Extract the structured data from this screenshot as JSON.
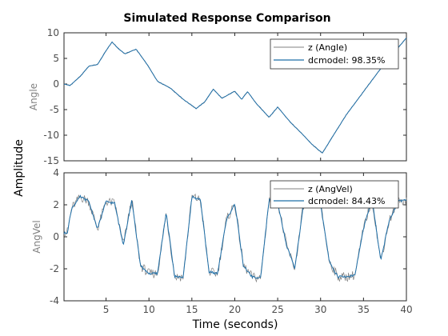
{
  "chart_data": {
    "type": "line",
    "title": "Simulated Response Comparison",
    "xlabel": "Time (seconds)",
    "ylabel": "Amplitude",
    "xlim": [
      0.1,
      40
    ],
    "x_ticks": [
      5,
      10,
      15,
      20,
      25,
      30,
      35,
      40
    ],
    "grid": false,
    "legend_placement": "top-right",
    "colors": {
      "measured": "#808080",
      "model": "#1f6fa8",
      "axes": "#262626",
      "text": "#4d4d4d"
    },
    "panels": [
      {
        "ylabel": "Angle",
        "ylim": [
          -15,
          10
        ],
        "y_ticks": [
          -15,
          -10,
          -5,
          0,
          5,
          10
        ],
        "series": [
          {
            "name": "z (Angle)",
            "role": "measured"
          },
          {
            "name": "dcmodel: 98.35%",
            "role": "model"
          }
        ],
        "x": [
          0.1,
          0.8,
          2,
          3,
          4,
          5,
          5.7,
          6.5,
          7.2,
          8.5,
          9.8,
          11,
          12.5,
          14,
          15.5,
          16.5,
          17.5,
          18.5,
          20,
          20.8,
          21.5,
          22.5,
          24,
          25,
          26.5,
          28,
          29,
          30.2,
          31.5,
          33,
          35,
          37,
          39,
          40
        ],
        "y": [
          0,
          -0.3,
          1.5,
          3.5,
          3.8,
          6.5,
          8.2,
          6.8,
          5.9,
          6.8,
          3.8,
          0.5,
          -0.8,
          -3.0,
          -4.8,
          -3.5,
          -1.0,
          -2.8,
          -1.4,
          -3.0,
          -1.5,
          -3.8,
          -6.5,
          -4.5,
          -7.5,
          -10.0,
          -11.8,
          -13.5,
          -10.0,
          -6.0,
          -1.5,
          3.0,
          7.0,
          9.0
        ]
      },
      {
        "ylabel": "AngVel",
        "ylim": [
          -4,
          4
        ],
        "y_ticks": [
          -4,
          -2,
          0,
          2,
          4
        ],
        "series": [
          {
            "name": "z (AngVel)",
            "role": "measured"
          },
          {
            "name": "dcmodel: 84.43%",
            "role": "model"
          }
        ],
        "x": [
          0.1,
          0.5,
          1,
          2,
          3,
          4,
          5,
          6,
          7,
          8,
          9,
          10,
          11,
          12,
          13,
          14,
          15,
          16,
          17,
          18,
          19,
          20,
          21,
          22,
          23,
          24,
          25,
          26,
          27,
          28,
          29,
          30,
          31,
          32,
          33,
          34,
          35,
          36,
          37,
          38,
          39,
          40
        ],
        "y": [
          0.2,
          0.3,
          1.8,
          2.5,
          2.2,
          0.5,
          2.2,
          2.1,
          -0.5,
          2.3,
          -1.8,
          -2.3,
          -2.3,
          1.5,
          -2.5,
          -2.5,
          2.5,
          2.3,
          -2.2,
          -2.3,
          1.0,
          2.1,
          -1.8,
          -2.5,
          -2.6,
          2.3,
          2.2,
          -0.5,
          -2.0,
          2.0,
          2.3,
          2.0,
          -1.5,
          -2.5,
          -2.5,
          -2.4,
          0.5,
          2.4,
          -1.5,
          1.0,
          2.2,
          2.3
        ]
      }
    ]
  }
}
